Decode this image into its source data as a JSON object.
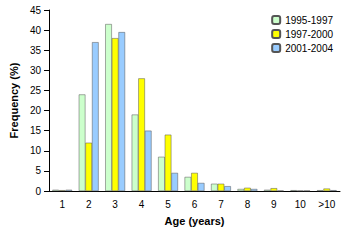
{
  "chart_data": {
    "type": "bar",
    "xlabel": "Age (years)",
    "ylabel": "Frequency (%)",
    "categories": [
      "1",
      "2",
      "3",
      "4",
      "5",
      "6",
      "7",
      "8",
      "9",
      "10",
      ">10"
    ],
    "series": [
      {
        "name": "1995-1997",
        "color": "#ccffcc",
        "values": [
          0.3,
          24,
          41.5,
          19,
          8.5,
          3.5,
          1.8,
          0.5,
          0.3,
          0.2,
          0.2
        ]
      },
      {
        "name": "1997-2000",
        "color": "#ffff00",
        "values": [
          0.2,
          12,
          38,
          28,
          14,
          4.5,
          1.8,
          0.8,
          0.7,
          0.1,
          0.6
        ]
      },
      {
        "name": "2001-2004",
        "color": "#99ccff",
        "values": [
          0.3,
          37,
          39.5,
          15,
          4.5,
          2,
          1.2,
          0.5,
          0.1,
          0.1,
          0.2
        ]
      }
    ],
    "ylim": [
      0,
      45
    ],
    "yticks": [
      0,
      5,
      10,
      15,
      20,
      25,
      30,
      35,
      40,
      45
    ],
    "grid": false,
    "legend": "upper right"
  }
}
